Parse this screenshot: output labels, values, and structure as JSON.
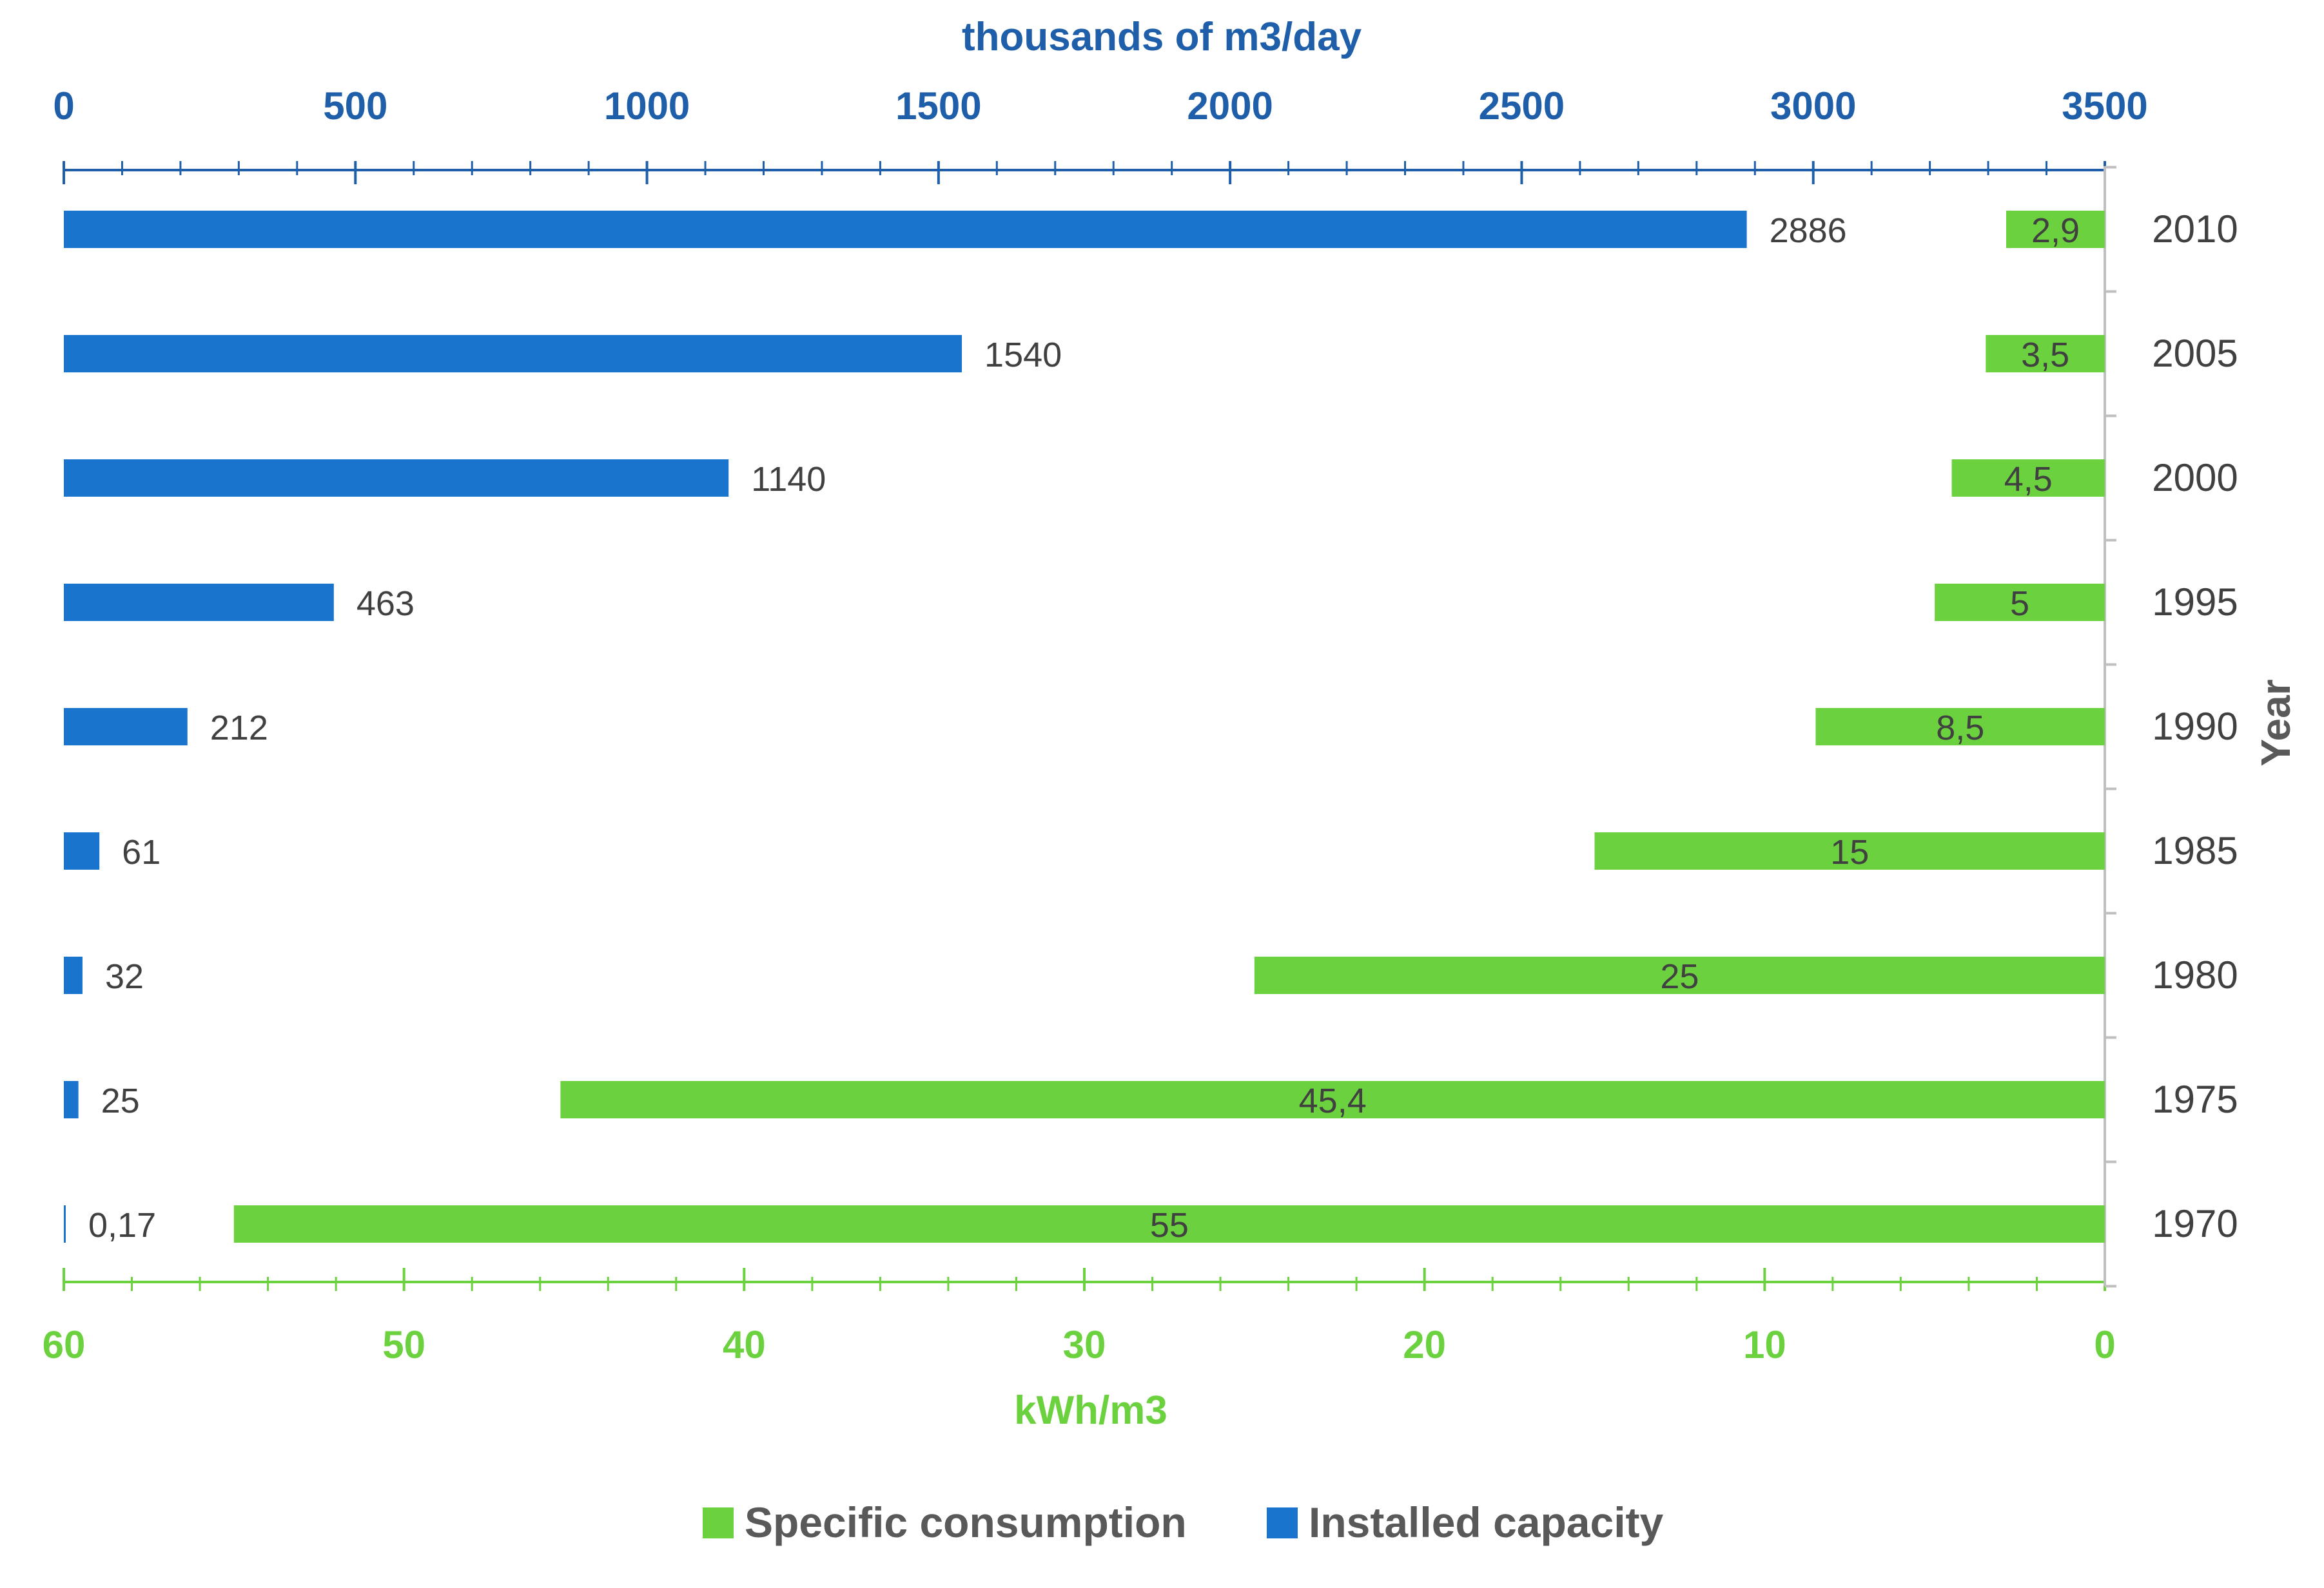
{
  "chart_data": {
    "type": "bar",
    "orientation": "horizontal",
    "categories": [
      "2010",
      "2005",
      "2000",
      "1995",
      "1990",
      "1985",
      "1980",
      "1975",
      "1970"
    ],
    "series": [
      {
        "name": "Installed capacity",
        "axis": "top",
        "color": "#1874CD",
        "values": [
          2886,
          1540,
          1140,
          463,
          212,
          61,
          32,
          25,
          0.17
        ],
        "labels": [
          "2886",
          "1540",
          "1140",
          "463",
          "212",
          "61",
          "32",
          "25",
          "0,17"
        ]
      },
      {
        "name": "Specific consumption",
        "axis": "bottom",
        "color": "#6CD13F",
        "values": [
          2.9,
          3.5,
          4.5,
          5,
          8.5,
          15,
          25,
          45.4,
          55
        ],
        "labels": [
          "2,9",
          "3,5",
          "4,5",
          "5",
          "8,5",
          "15",
          "25",
          "45,4",
          "55"
        ]
      }
    ],
    "top_axis": {
      "title": "thousands of m3/day",
      "range": [
        0,
        3500
      ],
      "ticks": [
        "0",
        "500",
        "1000",
        "1500",
        "2000",
        "2500",
        "3000",
        "3500"
      ],
      "color": "#1F5FAA"
    },
    "bottom_axis": {
      "title": "kWh/m3",
      "range": [
        60,
        0
      ],
      "ticks": [
        "60",
        "50",
        "40",
        "30",
        "20",
        "10",
        "0"
      ],
      "color": "#6CD13F"
    },
    "y_axis": {
      "title": "Year",
      "position": "right"
    },
    "legend": {
      "position": "bottom",
      "items": [
        {
          "label": "Specific consumption",
          "color": "#6CD13F"
        },
        {
          "label": "Installed capacity",
          "color": "#1874CD"
        }
      ]
    },
    "grid": false
  }
}
